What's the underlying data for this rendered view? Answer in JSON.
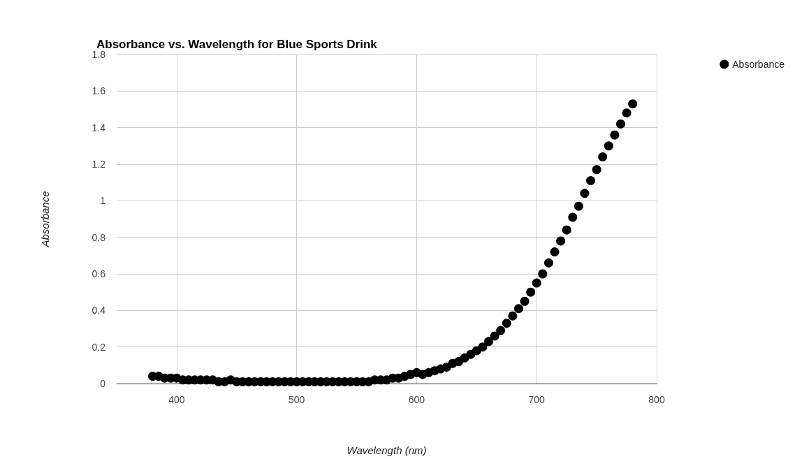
{
  "chart_data": {
    "type": "scatter",
    "title": "Absorbance vs. Wavelength for Blue Sports Drink",
    "xlabel": "Wavelength (nm)",
    "ylabel": "Absorbance",
    "x": [
      380,
      385,
      390,
      395,
      400,
      405,
      410,
      415,
      420,
      425,
      430,
      435,
      440,
      445,
      450,
      455,
      460,
      465,
      470,
      475,
      480,
      485,
      490,
      495,
      500,
      505,
      510,
      515,
      520,
      525,
      530,
      535,
      540,
      545,
      550,
      555,
      560,
      565,
      570,
      575,
      580,
      585,
      590,
      595,
      600,
      605,
      610,
      615,
      620,
      625,
      630,
      635,
      640,
      645,
      650,
      655,
      660,
      665,
      670,
      675,
      680,
      685,
      690,
      695,
      700,
      705,
      710,
      715,
      720,
      725,
      730,
      735,
      740,
      745,
      750,
      755,
      760,
      765,
      770,
      775,
      780
    ],
    "series": [
      {
        "name": "Absorbance",
        "color": "#000000",
        "values": [
          0.04,
          0.04,
          0.03,
          0.03,
          0.03,
          0.02,
          0.02,
          0.02,
          0.02,
          0.02,
          0.02,
          0.01,
          0.01,
          0.02,
          0.01,
          0.01,
          0.01,
          0.01,
          0.01,
          0.01,
          0.01,
          0.01,
          0.01,
          0.01,
          0.01,
          0.01,
          0.01,
          0.01,
          0.01,
          0.01,
          0.01,
          0.01,
          0.01,
          0.01,
          0.01,
          0.01,
          0.01,
          0.02,
          0.02,
          0.02,
          0.03,
          0.03,
          0.04,
          0.05,
          0.06,
          0.05,
          0.06,
          0.07,
          0.08,
          0.09,
          0.11,
          0.12,
          0.14,
          0.16,
          0.18,
          0.2,
          0.23,
          0.26,
          0.29,
          0.33,
          0.37,
          0.41,
          0.45,
          0.5,
          0.55,
          0.6,
          0.66,
          0.72,
          0.78,
          0.84,
          0.91,
          0.97,
          1.04,
          1.11,
          1.17,
          1.24,
          1.3,
          1.36,
          1.42,
          1.48,
          1.53
        ]
      }
    ],
    "xlim": [
      350,
      800
    ],
    "xticks": [
      400,
      500,
      600,
      700,
      800
    ],
    "ylim": [
      0,
      1.8
    ],
    "yticks": [
      0,
      0.2,
      0.4,
      0.6,
      0.8,
      1,
      1.2,
      1.4,
      1.6,
      1.8
    ],
    "grid": true,
    "legend": "top right",
    "marker": "circle"
  }
}
